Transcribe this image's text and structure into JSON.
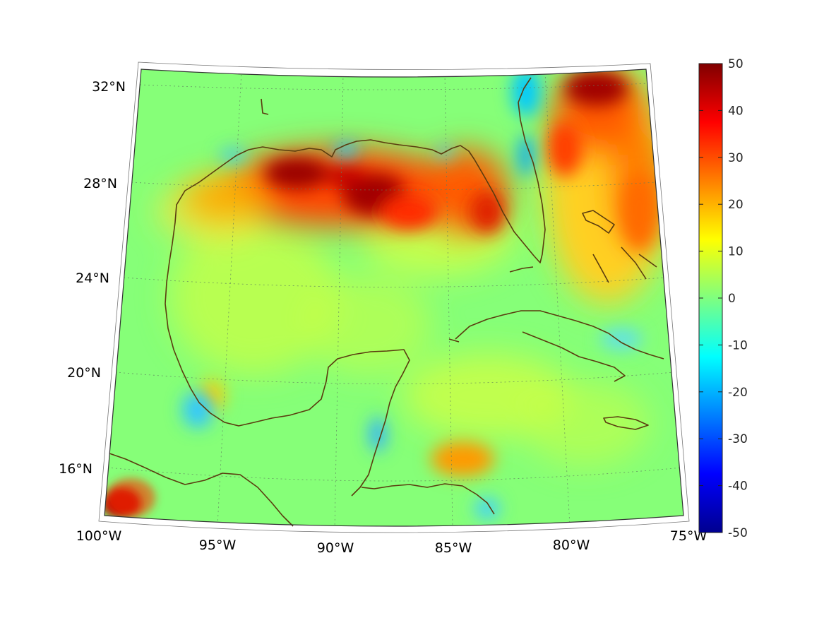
{
  "map": {
    "projection": "conic",
    "lon_range": [
      -100,
      -75
    ],
    "lat_range": [
      14,
      32.5
    ],
    "lon_ticks": [
      {
        "value": -100,
        "label": "100°W"
      },
      {
        "value": -95,
        "label": "95°W"
      },
      {
        "value": -90,
        "label": "90°W"
      },
      {
        "value": -85,
        "label": "85°W"
      },
      {
        "value": -80,
        "label": "80°W"
      },
      {
        "value": -75,
        "label": "75°W"
      }
    ],
    "lat_ticks": [
      {
        "value": 32,
        "label": "32°N"
      },
      {
        "value": 28,
        "label": "28°N"
      },
      {
        "value": 24,
        "label": "24°N"
      },
      {
        "value": 20,
        "label": "20°N"
      },
      {
        "value": 16,
        "label": "16°N"
      }
    ],
    "colormap": "jet",
    "coastline_color": "#5a3c0f",
    "grid": "dotted"
  },
  "colorbar": {
    "min": -50,
    "max": 50,
    "ticks": [
      {
        "value": 50,
        "label": "50"
      },
      {
        "value": 40,
        "label": "40"
      },
      {
        "value": 30,
        "label": "30"
      },
      {
        "value": 20,
        "label": "20"
      },
      {
        "value": 10,
        "label": "10"
      },
      {
        "value": 0,
        "label": "0"
      },
      {
        "value": -10,
        "label": "-10"
      },
      {
        "value": -20,
        "label": "-20"
      },
      {
        "value": -30,
        "label": "-30"
      },
      {
        "value": -40,
        "label": "-40"
      },
      {
        "value": -50,
        "label": "-50"
      }
    ]
  }
}
